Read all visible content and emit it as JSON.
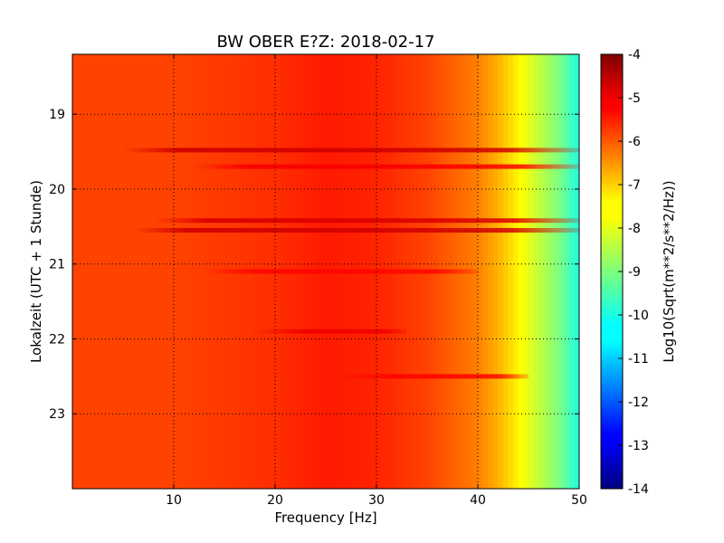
{
  "chart_data": {
    "type": "heatmap",
    "title": "BW OBER E?Z: 2018-02-17",
    "xlabel": "Frequency [Hz]",
    "ylabel": "Lokalzeit (UTC + 1 Stunde)",
    "xlim": [
      0,
      50
    ],
    "ylim": [
      24.0,
      18.2
    ],
    "x_ticks": [
      "10",
      "20",
      "30",
      "40",
      "50"
    ],
    "y_ticks": [
      "19",
      "20",
      "21",
      "22",
      "23"
    ],
    "grid": true,
    "colormap": "jet",
    "colorbar": {
      "label": "Log10(Sqrt(m**2/s**2/Hz))",
      "range": [
        -14,
        -4
      ],
      "ticks": [
        "-4",
        "-5",
        "-6",
        "-7",
        "-8",
        "-9",
        "-10",
        "-11",
        "-12",
        "-13",
        "-14"
      ]
    },
    "spectrum_profile": [
      {
        "hz": 0,
        "log10_amplitude": -5.9
      },
      {
        "hz": 10,
        "log10_amplitude": -5.9
      },
      {
        "hz": 20,
        "log10_amplitude": -5.7
      },
      {
        "hz": 25,
        "log10_amplitude": -5.5
      },
      {
        "hz": 30,
        "log10_amplitude": -5.6
      },
      {
        "hz": 35,
        "log10_amplitude": -5.9
      },
      {
        "hz": 40,
        "log10_amplitude": -6.5
      },
      {
        "hz": 42,
        "log10_amplitude": -7.0
      },
      {
        "hz": 45,
        "log10_amplitude": -8.0
      },
      {
        "hz": 48,
        "log10_amplitude": -9.0
      },
      {
        "hz": 50,
        "log10_amplitude": -10.0
      }
    ],
    "strong_bands": [
      {
        "time": 19.48,
        "hz_range": [
          5,
          50
        ],
        "log10_amplitude": -4.8
      },
      {
        "time": 19.7,
        "hz_range": [
          12,
          50
        ],
        "log10_amplitude": -5.2
      },
      {
        "time": 20.42,
        "hz_range": [
          8,
          50
        ],
        "log10_amplitude": -4.9
      },
      {
        "time": 20.55,
        "hz_range": [
          6,
          50
        ],
        "log10_amplitude": -4.8
      },
      {
        "time": 21.1,
        "hz_range": [
          13,
          40
        ],
        "log10_amplitude": -5.3
      },
      {
        "time": 21.9,
        "hz_range": [
          18,
          33
        ],
        "log10_amplitude": -5.1
      },
      {
        "time": 22.5,
        "hz_range": [
          26,
          45
        ],
        "log10_amplitude": -5.3
      }
    ]
  }
}
